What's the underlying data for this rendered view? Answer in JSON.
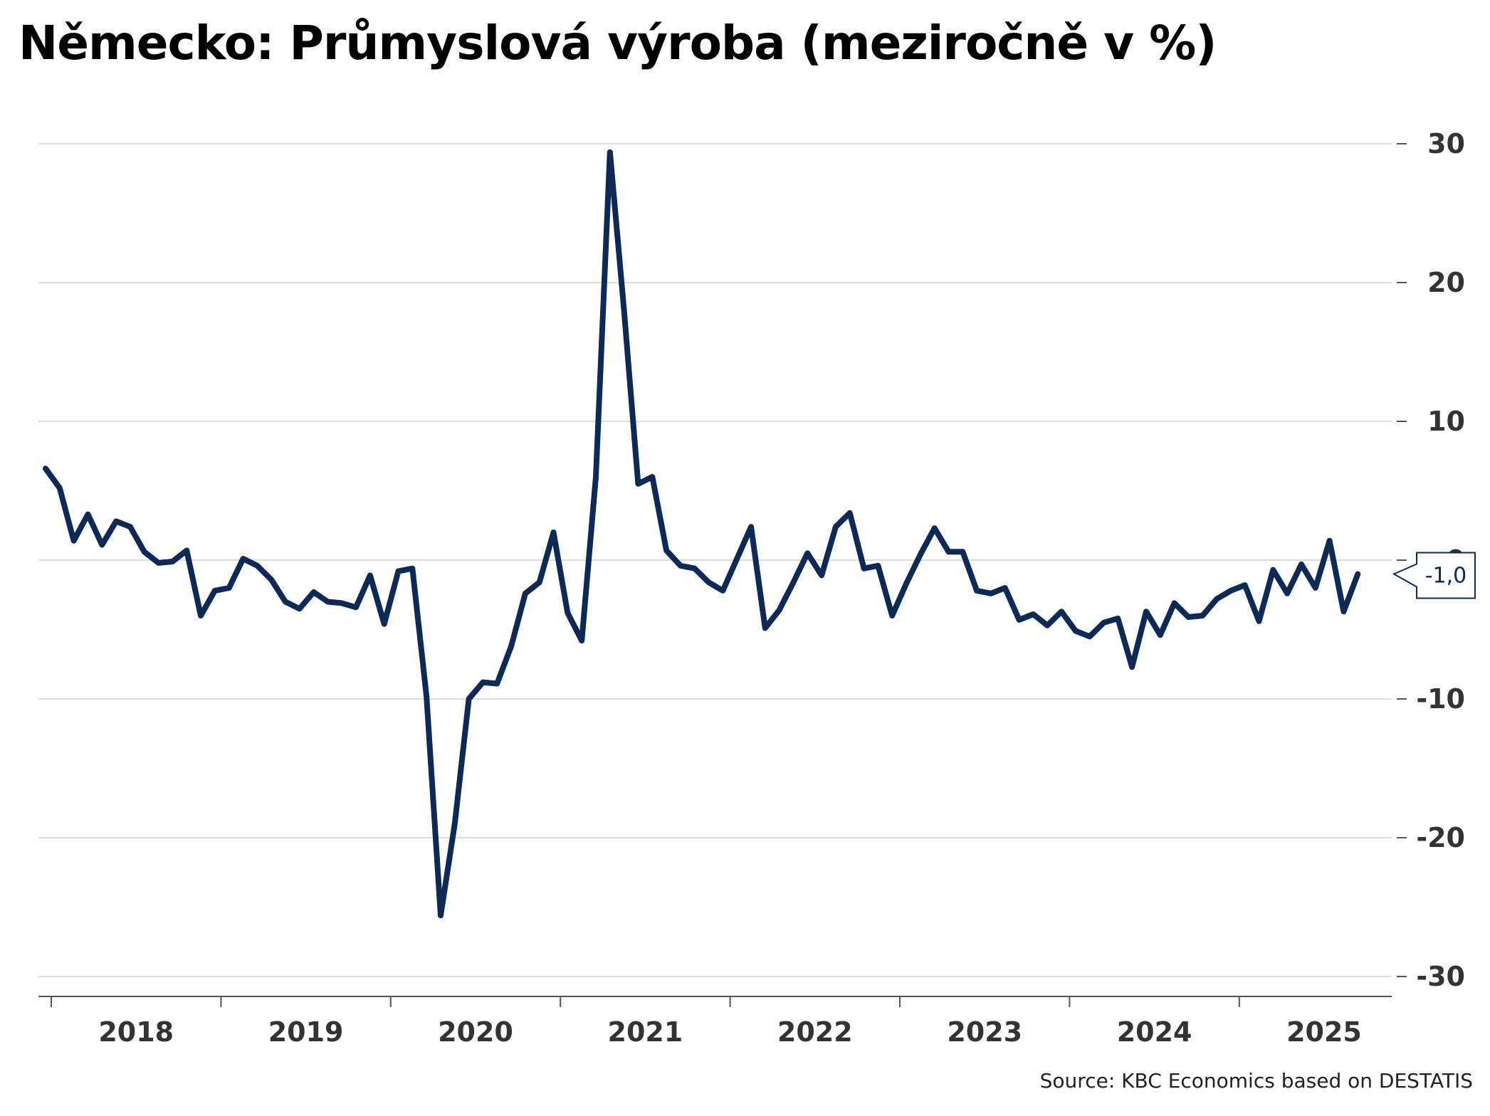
{
  "chart_data": {
    "type": "line",
    "title": "Německo: Průmyslová výroba (meziročně v %)",
    "source": "Source: KBC Economics based on DESTATIS",
    "xlabel": "",
    "ylabel": "",
    "ylim": [
      -30,
      30
    ],
    "yticks": [
      "30",
      "20",
      "10",
      "0",
      "-10",
      "-20",
      "-30"
    ],
    "year_labels": [
      "2018",
      "2019",
      "2020",
      "2021",
      "2022",
      "2023",
      "2024",
      "2025"
    ],
    "x_start": "2018-01",
    "grid": true,
    "line_color": "#0c2a55",
    "last_value_label": "-1,0",
    "series": [
      {
        "values": [
          6.6,
          5.2,
          1.4,
          3.3,
          1.1,
          2.8,
          2.4,
          0.6,
          -0.2,
          -0.1,
          0.7,
          -4.0,
          -2.2,
          -2.0,
          0.1,
          -0.4,
          -1.4,
          -3.0,
          -3.5,
          -2.3,
          -3.0,
          -3.1,
          -3.4,
          -1.1,
          -4.6,
          -0.8,
          -0.6,
          -9.8,
          -25.6,
          -19.0,
          -10.0,
          -8.8,
          -8.9,
          -6.2,
          -2.4,
          -1.6,
          2.0,
          -3.8,
          -5.8,
          6.0,
          29.4,
          18.0,
          5.5,
          6.0,
          0.7,
          -0.4,
          -0.6,
          -1.6,
          -2.2,
          0.1,
          2.4,
          -4.9,
          -3.6,
          -1.6,
          0.5,
          -1.1,
          2.4,
          3.4,
          -0.6,
          -0.4,
          -4.0,
          -1.7,
          0.4,
          2.3,
          0.6,
          0.6,
          -2.2,
          -2.4,
          -2.0,
          -4.3,
          -3.9,
          -4.7,
          -3.7,
          -5.1,
          -5.5,
          -4.5,
          -4.2,
          -7.7,
          -3.7,
          -5.4,
          -3.1,
          -4.1,
          -4.0,
          -2.8,
          -2.2,
          -1.8,
          -4.4,
          -0.7,
          -2.4,
          -0.3,
          -2.0,
          1.4,
          -3.7,
          -1.0
        ]
      }
    ]
  }
}
